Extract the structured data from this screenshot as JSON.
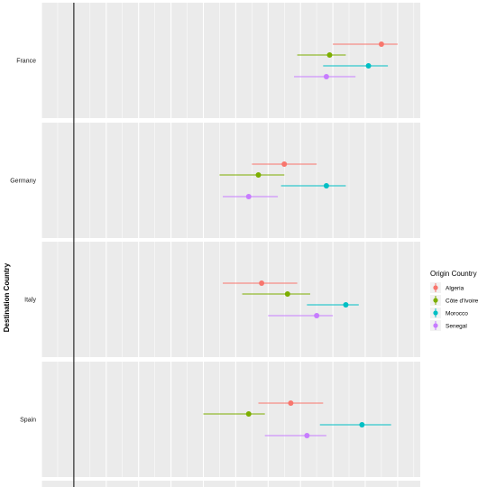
{
  "chart_data": {
    "type": "scatter",
    "subtype": "dot-with-interval",
    "ylabel": "Destination Country",
    "xlabel": "",
    "legend": {
      "title": "Origin Country",
      "placement": "right"
    },
    "grid": true,
    "xlim": [
      -1,
      10.7
    ],
    "reference_line_x": 0,
    "facets": [
      "France",
      "Germany",
      "Italy",
      "Spain"
    ],
    "series": [
      {
        "name": "Algeria",
        "color": "#F8766D",
        "points": [
          {
            "facet": "France",
            "estimate": 9.5,
            "low": 8.0,
            "high": 10.0
          },
          {
            "facet": "Germany",
            "estimate": 6.5,
            "low": 5.5,
            "high": 7.5
          },
          {
            "facet": "Italy",
            "estimate": 5.8,
            "low": 4.6,
            "high": 6.9
          },
          {
            "facet": "Spain",
            "estimate": 6.7,
            "low": 5.7,
            "high": 7.7
          }
        ]
      },
      {
        "name": "Côte d'Ivoire",
        "color": "#7CAE00",
        "points": [
          {
            "facet": "France",
            "estimate": 7.9,
            "low": 6.9,
            "high": 8.4
          },
          {
            "facet": "Germany",
            "estimate": 5.7,
            "low": 4.5,
            "high": 6.5
          },
          {
            "facet": "Italy",
            "estimate": 6.6,
            "low": 5.2,
            "high": 7.3
          },
          {
            "facet": "Spain",
            "estimate": 5.4,
            "low": 4.0,
            "high": 5.9
          }
        ]
      },
      {
        "name": "Morocco",
        "color": "#00BFC4",
        "points": [
          {
            "facet": "France",
            "estimate": 9.1,
            "low": 7.7,
            "high": 9.7
          },
          {
            "facet": "Germany",
            "estimate": 7.8,
            "low": 6.4,
            "high": 8.4
          },
          {
            "facet": "Italy",
            "estimate": 8.4,
            "low": 7.2,
            "high": 8.8
          },
          {
            "facet": "Spain",
            "estimate": 8.9,
            "low": 7.6,
            "high": 9.8
          }
        ]
      },
      {
        "name": "Senegal",
        "color": "#C77CFF",
        "points": [
          {
            "facet": "France",
            "estimate": 7.8,
            "low": 6.8,
            "high": 8.7
          },
          {
            "facet": "Germany",
            "estimate": 5.4,
            "low": 4.6,
            "high": 6.3
          },
          {
            "facet": "Italy",
            "estimate": 7.5,
            "low": 6.0,
            "high": 8.0
          },
          {
            "facet": "Spain",
            "estimate": 7.2,
            "low": 5.9,
            "high": 7.8
          }
        ]
      }
    ]
  }
}
